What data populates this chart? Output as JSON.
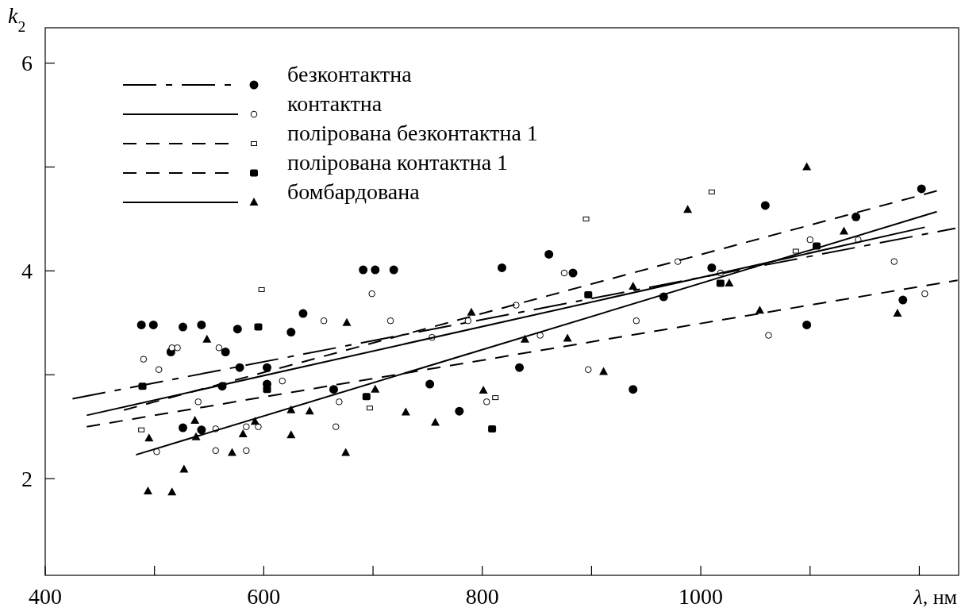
{
  "chart_data": {
    "type": "scatter",
    "xlabel": "λ, нм",
    "ylabel": "k$_{2}$",
    "xlim": [
      400,
      1236
    ],
    "ylim": [
      1.07,
      6.34
    ],
    "xticks": [
      400,
      {
        "value": 500,
        "label": null
      },
      600,
      {
        "value": 700,
        "label": null
      },
      800,
      {
        "value": 900,
        "label": null
      },
      1000,
      {
        "value": 1100,
        "label": null
      },
      {
        "value": 1200,
        "label": null
      }
    ],
    "yticks": [
      2,
      {
        "value": 3,
        "label": null
      },
      4,
      {
        "value": 5,
        "label": null
      },
      6
    ],
    "legend": "top left",
    "series": [
      {
        "name": "безконтактна",
        "color": "#000000",
        "marker": "circle",
        "x": [
          488,
          499,
          526,
          543,
          576,
          625,
          636,
          515,
          565,
          578,
          603,
          603,
          562,
          526,
          543,
          691,
          702,
          719,
          818,
          664,
          752,
          779,
          834,
          861,
          883,
          1010,
          966,
          938,
          1059,
          1202,
          1142,
          1185,
          1097
        ],
        "values": [
          3.48,
          3.48,
          3.46,
          3.48,
          3.44,
          3.41,
          3.59,
          3.22,
          3.22,
          3.07,
          3.07,
          2.91,
          2.89,
          2.49,
          2.47,
          4.01,
          4.01,
          4.01,
          4.03,
          2.86,
          2.91,
          2.65,
          3.07,
          4.16,
          3.98,
          4.03,
          3.75,
          2.86,
          4.63,
          4.79,
          4.52,
          3.72,
          3.48
        ]
      },
      {
        "type": "line",
        "color": "#000000",
        "line_style": "dashdot",
        "x": [
          425,
          1233
        ],
        "values": [
          2.77,
          4.41
        ]
      },
      {
        "name": "контактна",
        "color": "#ffffff",
        "marker": "circle",
        "x": [
          490,
          504,
          516,
          521,
          559,
          617,
          540,
          584,
          595,
          556,
          502,
          556,
          584,
          699,
          655,
          716,
          787,
          754,
          669,
          666,
          804,
          831,
          875,
          853,
          941,
          897,
          1018,
          979,
          1100,
          1144,
          1177,
          1205,
          1062
        ],
        "values": [
          3.15,
          3.05,
          3.26,
          3.26,
          3.26,
          2.94,
          2.74,
          2.5,
          2.5,
          2.48,
          2.26,
          2.27,
          2.27,
          3.78,
          3.52,
          3.52,
          3.52,
          3.36,
          2.74,
          2.5,
          2.74,
          3.67,
          3.98,
          3.38,
          3.52,
          3.05,
          3.98,
          4.09,
          4.3,
          4.3,
          4.09,
          3.78,
          3.38
        ]
      },
      {
        "type": "line",
        "color": "#000000",
        "line_style": "solid",
        "x": [
          438,
          1205
        ],
        "values": [
          2.61,
          4.42
        ]
      },
      {
        "name": "полірована безконтактна 1",
        "color": "#ffffff",
        "marker": "square",
        "x": [
          598,
          488,
          697,
          812,
          895,
          1010,
          1087
        ],
        "values": [
          3.82,
          2.47,
          2.68,
          2.78,
          4.5,
          4.76,
          4.19
        ]
      },
      {
        "type": "line",
        "color": "#000000",
        "line_style": "dashed",
        "x": [
          472,
          1216
        ],
        "values": [
          2.66,
          4.77
        ]
      },
      {
        "name": "полірована контактна 1",
        "color": "#000000",
        "marker": "square",
        "x": [
          489,
          595,
          603,
          694,
          809,
          897,
          1018,
          1106
        ],
        "values": [
          2.89,
          3.46,
          2.86,
          2.79,
          2.48,
          3.77,
          3.88,
          4.24
        ]
      },
      {
        "type": "line",
        "color": "#000000",
        "line_style": "dashed",
        "x": [
          438,
          1235
        ],
        "values": [
          2.5,
          3.91
        ]
      },
      {
        "name": "бомбардована",
        "color": "#000000",
        "marker": "triangle",
        "x": [
          676,
          790,
          702,
          642,
          730,
          757,
          801,
          675,
          988,
          938,
          878,
          911,
          1026,
          1097,
          1131,
          1054,
          1180,
          548,
          537,
          495,
          581,
          592,
          625,
          625,
          538,
          571,
          527,
          494,
          516,
          839
        ],
        "values": [
          3.5,
          3.6,
          2.86,
          2.65,
          2.64,
          2.54,
          2.85,
          2.25,
          4.59,
          3.85,
          3.35,
          3.03,
          3.88,
          5.0,
          4.38,
          3.62,
          3.59,
          3.34,
          2.56,
          2.39,
          2.43,
          2.55,
          2.66,
          2.42,
          2.4,
          2.25,
          2.09,
          1.88,
          1.87,
          3.34
        ]
      },
      {
        "type": "line",
        "color": "#000000",
        "line_style": "solid",
        "x": [
          483,
          1216
        ],
        "values": [
          2.23,
          4.57
        ]
      }
    ]
  }
}
